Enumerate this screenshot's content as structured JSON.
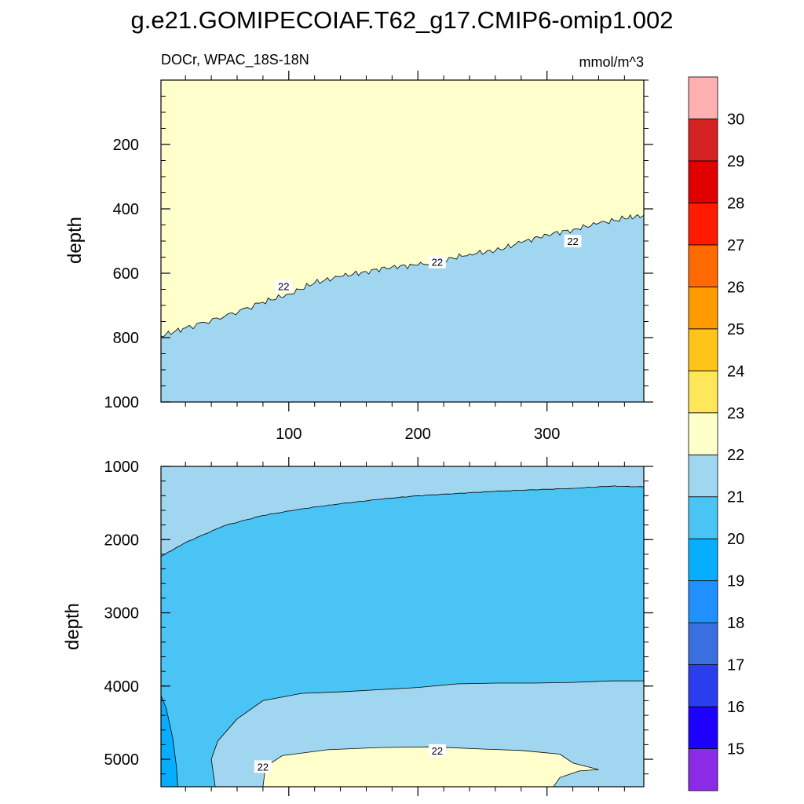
{
  "chart_data": {
    "type": "heatmap",
    "title": "g.e21.GOMIPECOIAF.T62_g17.CMIP6-omip1.002",
    "subtitle_left": "DOCr, WPAC_18S-18N",
    "units": "mmol/m^3",
    "x_range": [
      1,
      375
    ],
    "x_ticks": [
      "100",
      "200",
      "300"
    ],
    "colorbar": {
      "levels": [
        "15",
        "16",
        "17",
        "18",
        "19",
        "20",
        "21",
        "22",
        "23",
        "24",
        "25",
        "26",
        "27",
        "28",
        "29",
        "30"
      ],
      "colors": [
        "#8c2be6",
        "#1e00ff",
        "#2a3ef0",
        "#3a6fe0",
        "#2190ff",
        "#08aefe",
        "#4ac4f5",
        "#a0d6ef",
        "#ffffcc",
        "#ffe75a",
        "#ffc419",
        "#ff9a00",
        "#ff6a00",
        "#ff1a00",
        "#e10000",
        "#d42222",
        "#ffb0b0"
      ]
    },
    "panels": [
      {
        "name": "upper",
        "ylabel": "depth",
        "y_range": [
          0,
          1000
        ],
        "y_ticks": [
          "200",
          "400",
          "600",
          "800",
          "1000"
        ],
        "fill_below_color": "#a0d6ef",
        "fill_above_color": "#ffffcc",
        "contour_22_depth": [
          [
            1,
            795
          ],
          [
            20,
            770
          ],
          [
            50,
            735
          ],
          [
            80,
            690
          ],
          [
            100,
            665
          ],
          [
            120,
            630
          ],
          [
            140,
            610
          ],
          [
            160,
            595
          ],
          [
            180,
            580
          ],
          [
            200,
            575
          ],
          [
            220,
            560
          ],
          [
            240,
            540
          ],
          [
            260,
            530
          ],
          [
            280,
            505
          ],
          [
            300,
            480
          ],
          [
            320,
            465
          ],
          [
            340,
            445
          ],
          [
            360,
            430
          ],
          [
            375,
            420
          ]
        ],
        "contour_labels": [
          {
            "text": "22",
            "x": 96,
            "depth": 640
          },
          {
            "text": "22",
            "x": 215,
            "depth": 565
          },
          {
            "text": "22",
            "x": 320,
            "depth": 500
          }
        ]
      },
      {
        "name": "lower",
        "ylabel": "depth",
        "y_range": [
          1000,
          5375
        ],
        "y_ticks": [
          "1000",
          "2000",
          "3000",
          "4000",
          "5000"
        ],
        "contour_21_upper_depth": [
          [
            1,
            2230
          ],
          [
            20,
            2040
          ],
          [
            50,
            1810
          ],
          [
            80,
            1670
          ],
          [
            110,
            1580
          ],
          [
            140,
            1510
          ],
          [
            170,
            1450
          ],
          [
            200,
            1400
          ],
          [
            230,
            1370
          ],
          [
            260,
            1340
          ],
          [
            290,
            1320
          ],
          [
            320,
            1300
          ],
          [
            350,
            1270
          ],
          [
            375,
            1280
          ]
        ],
        "contour_21_lower_depth": [
          [
            375,
            5375
          ],
          [
            43,
            5375
          ],
          [
            40,
            5000
          ],
          [
            45,
            4750
          ],
          [
            60,
            4450
          ],
          [
            80,
            4200
          ],
          [
            110,
            4100
          ],
          [
            140,
            4080
          ],
          [
            170,
            4050
          ],
          [
            200,
            4020
          ],
          [
            230,
            3970
          ],
          [
            260,
            3960
          ],
          [
            290,
            3960
          ],
          [
            320,
            3950
          ],
          [
            350,
            3930
          ],
          [
            375,
            3930
          ]
        ],
        "contour_19_left_depth": [
          [
            1,
            4130
          ],
          [
            5,
            4300
          ],
          [
            10,
            4700
          ],
          [
            13,
            5100
          ],
          [
            14,
            5375
          ],
          [
            1,
            5375
          ]
        ],
        "contour_22_blob_depth": [
          [
            80,
            5375
          ],
          [
            82,
            5100
          ],
          [
            95,
            4950
          ],
          [
            130,
            4870
          ],
          [
            170,
            4840
          ],
          [
            210,
            4830
          ],
          [
            250,
            4860
          ],
          [
            280,
            4880
          ],
          [
            310,
            4930
          ],
          [
            320,
            5050
          ],
          [
            340,
            5140
          ],
          [
            325,
            5160
          ],
          [
            310,
            5250
          ],
          [
            305,
            5375
          ]
        ],
        "contour_labels": [
          {
            "text": "22",
            "x": 215,
            "depth": 4880
          },
          {
            "text": "22",
            "x": 80,
            "depth": 5100
          }
        ]
      }
    ]
  }
}
